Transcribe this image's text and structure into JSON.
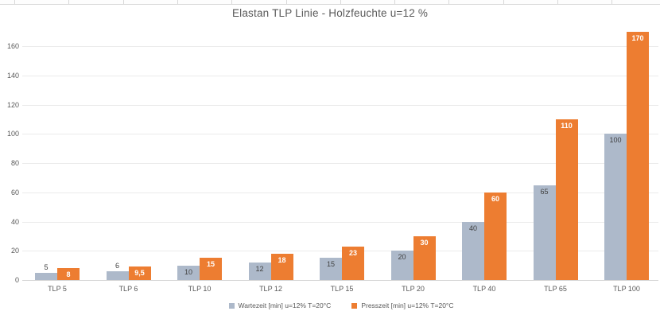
{
  "chart_data": {
    "type": "bar",
    "title": "Elastan TLP Linie - Holzfeuchte u=12 %",
    "categories": [
      "TLP 5",
      "TLP 6",
      "TLP 10",
      "TLP 12",
      "TLP 15",
      "TLP 20",
      "TLP 40",
      "TLP 65",
      "TLP 100"
    ],
    "series": [
      {
        "name": "Wartezeit [min] u=12% T=20°C",
        "values": [
          5,
          6,
          10,
          12,
          15,
          20,
          40,
          65,
          100
        ],
        "labels": [
          "5",
          "6",
          "10",
          "12",
          "15",
          "20",
          "40",
          "65",
          "100"
        ],
        "color": "#adb9ca",
        "label_color": "#404040",
        "label_bold": false
      },
      {
        "name": "Presszeit [min] u=12% T=20°C",
        "values": [
          8,
          9.5,
          15,
          18,
          23,
          30,
          60,
          110,
          170
        ],
        "labels": [
          "8",
          "9,5",
          "15",
          "18",
          "23",
          "30",
          "60",
          "110",
          "170"
        ],
        "color": "#ed7d31",
        "label_color": "#ffffff",
        "label_bold": true
      }
    ],
    "xlabel": "",
    "ylabel": "",
    "ylim": [
      0,
      160
    ],
    "ytick_step": 20,
    "ytick_labels": [
      "0",
      "20",
      "40",
      "60",
      "80",
      "100",
      "120",
      "140",
      "160"
    ],
    "grid": true,
    "legend_position": "bottom"
  },
  "colors": {
    "gridline": "#ebebeb",
    "axis_line": "#d6d6d6",
    "tick_text": "#595959",
    "title_text": "#595959",
    "legend_text": "#595959",
    "sheet_border": "#d8d8d8"
  }
}
